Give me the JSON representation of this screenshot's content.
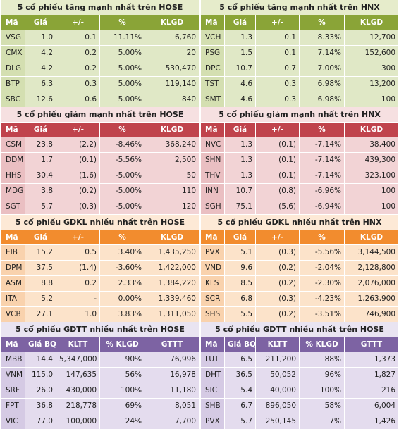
{
  "panels": [
    {
      "title": "5 cổ phiếu tăng mạnh nhất trên HOSE",
      "headers": [
        "Mã",
        "Giá",
        "+/-",
        "%",
        "KLGD"
      ],
      "rows": [
        [
          "VSG",
          "1.0",
          "0.1",
          "11.11%",
          "6,760"
        ],
        [
          "CMX",
          "4.2",
          "0.2",
          "5.00%",
          "20"
        ],
        [
          "DLG",
          "4.2",
          "0.2",
          "5.00%",
          "530,470"
        ],
        [
          "BTP",
          "6.3",
          "0.3",
          "5.00%",
          "119,140"
        ],
        [
          "SBC",
          "12.6",
          "0.6",
          "5.00%",
          "840"
        ]
      ]
    },
    {
      "title": "5 cổ phiếu tăng mạnh nhất trên HNX",
      "headers": [
        "Mã",
        "Giá",
        "+/-",
        "%",
        "KLGD"
      ],
      "rows": [
        [
          "VCH",
          "1.3",
          "0.1",
          "8.33%",
          "12,700"
        ],
        [
          "PSG",
          "1.5",
          "0.1",
          "7.14%",
          "152,600"
        ],
        [
          "DPC",
          "10.7",
          "0.7",
          "7.00%",
          "300"
        ],
        [
          "TST",
          "4.6",
          "0.3",
          "6.98%",
          "13,200"
        ],
        [
          "SMT",
          "4.6",
          "0.3",
          "6.98%",
          "100"
        ]
      ]
    },
    {
      "title": "5 cổ phiếu giảm mạnh nhất trên HOSE",
      "headers": [
        "Mã",
        "Giá",
        "+/-",
        "%",
        "KLGD"
      ],
      "rows": [
        [
          "CSM",
          "23.8",
          "(2.2)",
          "-8.46%",
          "368,240"
        ],
        [
          "DDM",
          "1.7",
          "(0.1)",
          "-5.56%",
          "2,500"
        ],
        [
          "HHS",
          "30.4",
          "(1.6)",
          "-5.00%",
          "50"
        ],
        [
          "MDG",
          "3.8",
          "(0.2)",
          "-5.00%",
          "110"
        ],
        [
          "SGT",
          "5.7",
          "(0.3)",
          "-5.00%",
          "120"
        ]
      ]
    },
    {
      "title": "5 cổ phiếu giảm mạnh nhất trên HNX",
      "headers": [
        "Mã",
        "Giá",
        "+/-",
        "%",
        "KLGD"
      ],
      "rows": [
        [
          "NVC",
          "1.3",
          "(0.1)",
          "-7.14%",
          "38,400"
        ],
        [
          "SHN",
          "1.3",
          "(0.1)",
          "-7.14%",
          "439,300"
        ],
        [
          "THV",
          "1.3",
          "(0.1)",
          "-7.14%",
          "323,100"
        ],
        [
          "INN",
          "10.7",
          "(0.8)",
          "-6.96%",
          "100"
        ],
        [
          "SGH",
          "75.1",
          "(5.6)",
          "-6.94%",
          "100"
        ]
      ]
    },
    {
      "title": "5 cổ phiếu GDKL nhiều nhất trên HOSE",
      "headers": [
        "Mã",
        "Giá",
        "+/-",
        "%",
        "KLGD"
      ],
      "rows": [
        [
          "EIB",
          "15.2",
          "0.5",
          "3.40%",
          "1,435,250"
        ],
        [
          "DPM",
          "37.5",
          "(1.4)",
          "-3.60%",
          "1,422,000"
        ],
        [
          "ASM",
          "8.8",
          "0.2",
          "2.33%",
          "1,384,220"
        ],
        [
          "ITA",
          "5.2",
          "-",
          "0.00%",
          "1,339,460"
        ],
        [
          "VCB",
          "27.1",
          "1.0",
          "3.83%",
          "1,311,050"
        ]
      ]
    },
    {
      "title": "5 cổ phiếu GDKL nhiều nhất trên HNX",
      "headers": [
        "Mã",
        "Giá",
        "+/-",
        "%",
        "KLGD"
      ],
      "rows": [
        [
          "PVX",
          "5.1",
          "(0.3)",
          "-5.56%",
          "3,144,500"
        ],
        [
          "VND",
          "9.6",
          "(0.2)",
          "-2.04%",
          "2,128,800"
        ],
        [
          "KLS",
          "8.5",
          "(0.2)",
          "-2.30%",
          "2,076,000"
        ],
        [
          "SCR",
          "6.8",
          "(0.3)",
          "-4.23%",
          "1,263,900"
        ],
        [
          "SHS",
          "5.5",
          "(0.2)",
          "-3.51%",
          "746,900"
        ]
      ]
    },
    {
      "title": "5 cổ phiếu GDTT nhiều nhất trên HOSE",
      "headers": [
        "Mã",
        "Giá BQ",
        "KLTT",
        "% KLGD",
        "GTTT"
      ],
      "rows": [
        [
          "MBB",
          "14.4",
          "5,347,000",
          "90%",
          "76,996"
        ],
        [
          "VNM",
          "115.0",
          "147,635",
          "56%",
          "16,978"
        ],
        [
          "SRF",
          "26.0",
          "430,000",
          "100%",
          "11,180"
        ],
        [
          "FPT",
          "36.8",
          "218,778",
          "69%",
          "8,051"
        ],
        [
          "VIC",
          "77.0",
          "100,000",
          "24%",
          "7,700"
        ]
      ]
    },
    {
      "title": "5 cổ phiếu GDTT nhiều nhất trên HOSE",
      "headers": [
        "Mã",
        "Giá BQ",
        "KLTT",
        "% KLGD",
        "GTTT"
      ],
      "rows": [
        [
          "LUT",
          "6.5",
          "211,200",
          "88%",
          "1,373"
        ],
        [
          "DHT",
          "36.5",
          "50,052",
          "96%",
          "1,827"
        ],
        [
          "SIC",
          "5.4",
          "40,000",
          "100%",
          "216"
        ],
        [
          "SHB",
          "6.7",
          "896,050",
          "58%",
          "6,004"
        ],
        [
          "PVX",
          "5.7",
          "250,145",
          "7%",
          "1,426"
        ]
      ]
    }
  ]
}
